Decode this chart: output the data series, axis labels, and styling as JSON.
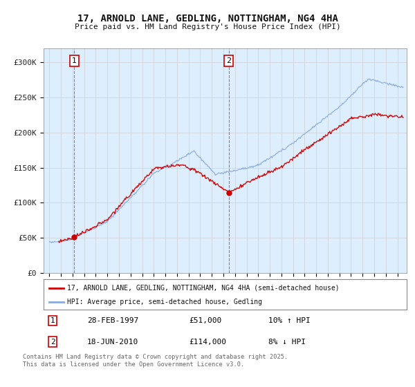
{
  "title": "17, ARNOLD LANE, GEDLING, NOTTINGHAM, NG4 4HA",
  "subtitle": "Price paid vs. HM Land Registry's House Price Index (HPI)",
  "ylabel_ticks": [
    "£0",
    "£50K",
    "£100K",
    "£150K",
    "£200K",
    "£250K",
    "£300K"
  ],
  "ytick_values": [
    0,
    50000,
    100000,
    150000,
    200000,
    250000,
    300000
  ],
  "ylim": [
    0,
    320000
  ],
  "xlim_start": 1994.5,
  "xlim_end": 2025.8,
  "legend_line1": "17, ARNOLD LANE, GEDLING, NOTTINGHAM, NG4 4HA (semi-detached house)",
  "legend_line2": "HPI: Average price, semi-detached house, Gedling",
  "sale1_date": "28-FEB-1997",
  "sale1_price": "£51,000",
  "sale1_hpi": "10% ↑ HPI",
  "sale1_year": 1997.15,
  "sale1_value": 51000,
  "sale2_date": "18-JUN-2010",
  "sale2_price": "£114,000",
  "sale2_hpi": "8% ↓ HPI",
  "sale2_year": 2010.46,
  "sale2_value": 114000,
  "line_color_red": "#cc0000",
  "line_color_blue": "#88aadd",
  "bg_color": "#ddeeff",
  "grid_color": "#cccccc",
  "copyright_text": "Contains HM Land Registry data © Crown copyright and database right 2025.\nThis data is licensed under the Open Government Licence v3.0."
}
